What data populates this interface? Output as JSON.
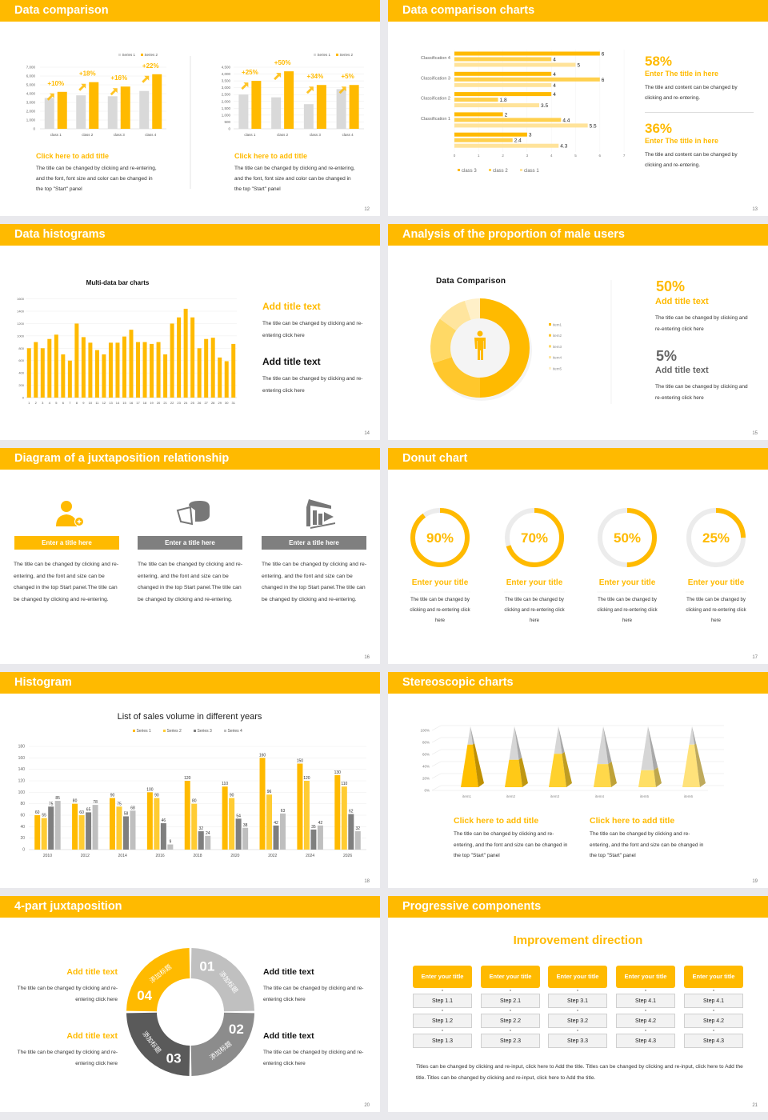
{
  "colors": {
    "accent": "#FFBA00",
    "page_bg": "#e9e9ed",
    "gray_light": "#c0c0c0",
    "gray_mid": "#8c8c8c",
    "gray_dark": "#5a5a5a"
  },
  "slides": [
    {
      "title": "Data comparison",
      "page": "12",
      "blocks": [
        {
          "title": "Click here to add title",
          "body": "The title can be changed by clicking and re-entering, and the font, font size and color can be changed in the top \"Start\" panel"
        },
        {
          "title": "Click here to add title",
          "body": "The title can be changed by clicking and re-entering, and the font, font size and color can be changed in the top \"Start\" panel"
        }
      ]
    },
    {
      "title": "Data comparison charts",
      "page": "13",
      "stats": [
        {
          "value": "58%",
          "title": "Enter The title in here",
          "body": "The title and content can be changed by clicking and re-entering."
        },
        {
          "value": "36%",
          "title": "Enter The title in here",
          "body": "The title and content can be changed by clicking and re-entering."
        }
      ]
    },
    {
      "title": "Data histograms",
      "page": "14",
      "blocks": [
        {
          "title": "Add title text",
          "body": "The title can be changed by clicking and re-entering click here"
        },
        {
          "title": "Add title text",
          "body": "The title can be changed by clicking and re-entering click here"
        }
      ]
    },
    {
      "title": "Analysis of the proportion of male users",
      "page": "15",
      "stats": [
        {
          "value": "50%",
          "title": "Add title text",
          "body": "The title can be changed by clicking and re-entering click here"
        },
        {
          "value": "5%",
          "title": "Add title text",
          "body": "The title can be changed by clicking and re-entering click here"
        }
      ]
    },
    {
      "title": "Diagram of a juxtaposition relationship",
      "page": "16",
      "columns": [
        {
          "icon": "user-add-icon",
          "label": "Enter a title here",
          "body": "The title can be changed by clicking and re-entering, and the font and size can be changed in the top Start panel.The title can be changed by clicking and re-entering."
        },
        {
          "icon": "pie-chart-icon",
          "label": "Enter a title here",
          "body": "The title can be changed by clicking and re-entering, and the font and size can be changed in the top Start panel.The title can be changed by clicking and re-entering."
        },
        {
          "icon": "building-icon",
          "label": "Enter a title here",
          "body": "The title can be changed by clicking and re-entering, and the font and size can be changed in the top Start panel.The title can be changed by clicking and re-entering."
        }
      ]
    },
    {
      "title": "Donut chart",
      "page": "17",
      "items": [
        {
          "title": "Enter your title",
          "body": "The title can be changed by clicking and re-entering click here"
        },
        {
          "title": "Enter your title",
          "body": "The title can be changed by clicking and re-entering click here"
        },
        {
          "title": "Enter your title",
          "body": "The title can be changed by clicking and re-entering click here"
        },
        {
          "title": "Enter your title",
          "body": "The title can be changed by clicking and re-entering click here"
        }
      ]
    },
    {
      "title": "Histogram",
      "page": "18"
    },
    {
      "title": "Stereoscopic charts",
      "page": "19",
      "blocks": [
        {
          "title": "Click here to add title",
          "body": "The title can be changed by clicking and re-entering, and the font and size can be changed in the top \"Start\" panel"
        },
        {
          "title": "Click here to add title",
          "body": "The title can be changed by clicking and re-entering, and the font and size can be changed in the top \"Start\" panel"
        }
      ]
    },
    {
      "title": "4-part juxtaposition",
      "page": "20",
      "segments": [
        {
          "num": "01",
          "label": "添加标题",
          "color": "#c0c0c0"
        },
        {
          "num": "02",
          "label": "添加标题",
          "color": "#8c8c8c"
        },
        {
          "num": "03",
          "label": "添加标题",
          "color": "#5a5a5a"
        },
        {
          "num": "04",
          "label": "添加标题",
          "color": "#FFBA00"
        }
      ],
      "blocks": [
        {
          "title": "Add title text",
          "body": "The title can be changed by clicking and re-entering click here"
        },
        {
          "title": "Add title text",
          "body": "The title can be changed by clicking and re-entering click here"
        },
        {
          "title": "Add title text",
          "body": "The title can be changed by clicking and re-entering click here"
        },
        {
          "title": "Add title text",
          "body": "The title can be changed by clicking and re-entering click here"
        }
      ]
    },
    {
      "title": "Progressive components",
      "page": "21",
      "heading": "Improvement direction",
      "columns": [
        {
          "title": "Enter your title",
          "steps": [
            "Step 1.1",
            "Step 1.2",
            "Step 1.3"
          ]
        },
        {
          "title": "Enter your title",
          "steps": [
            "Step 2.1",
            "Step 2.2",
            "Step 2.3"
          ]
        },
        {
          "title": "Enter your title",
          "steps": [
            "Step 3.1",
            "Step 3.2",
            "Step 3.3"
          ]
        },
        {
          "title": "Enter your title",
          "steps": [
            "Step 4.1",
            "Step 4.2",
            "Step 4.3"
          ]
        },
        {
          "title": "Enter your title",
          "steps": [
            "Step 4.1",
            "Step 4.2",
            "Step 4.3"
          ]
        }
      ],
      "footnote": "Titles can be changed by clicking and re-input, click here to Add the title. Titles can be changed by clicking and re-input, click here to Add the title. Titles can be changed by clicking and re-input, click here to Add the title."
    }
  ],
  "chart_data": [
    {
      "type": "bar",
      "categories": [
        "class 1",
        "class 2",
        "class 3",
        "class 4"
      ],
      "series": [
        {
          "name": "Series 1",
          "values": [
            3500,
            3800,
            3700,
            4300
          ],
          "color": "#d9d9d9"
        },
        {
          "name": "Series 2",
          "values": [
            4200,
            5300,
            4800,
            6200
          ],
          "color": "#FFBA00"
        }
      ],
      "annotations": [
        "+10%",
        "+18%",
        "+16%",
        "+22%"
      ],
      "ylim": [
        0,
        7000
      ],
      "yticks": [
        "0",
        "1,000",
        "2,000",
        "3,000",
        "4,000",
        "5,000",
        "6,000",
        "7,000"
      ],
      "grid": true,
      "legend": "top-right"
    },
    {
      "type": "bar",
      "categories": [
        "class 1",
        "class 2",
        "class 3",
        "class 4"
      ],
      "series": [
        {
          "name": "Series 1",
          "values": [
            2500,
            2300,
            1800,
            2900
          ],
          "color": "#d9d9d9"
        },
        {
          "name": "Series 2",
          "values": [
            3500,
            4200,
            3200,
            3200
          ],
          "color": "#FFBA00"
        }
      ],
      "annotations": [
        "+25%",
        "+50%",
        "+34%",
        "+5%"
      ],
      "ylim": [
        0,
        4500
      ],
      "yticks": [
        "0",
        "500",
        "1,000",
        "1,500",
        "2,000",
        "2,500",
        "3,000",
        "3,500",
        "4,000",
        "4,500"
      ],
      "grid": true,
      "legend": "top-right"
    },
    {
      "type": "bar",
      "orientation": "horizontal",
      "categories": [
        "Classification 4",
        "Classification 3",
        "Classification 2",
        "Classification 1",
        ""
      ],
      "series": [
        {
          "name": "class 3",
          "values": [
            6,
            4,
            4,
            2,
            3
          ],
          "color": "#FFBA00"
        },
        {
          "name": "class 2",
          "values": [
            4,
            6,
            1.8,
            4.4,
            2.4
          ],
          "color": "#FFD04D"
        },
        {
          "name": "class 1",
          "values": [
            5,
            4,
            3.5,
            5.5,
            4.3
          ],
          "color": "#FFE39A"
        }
      ],
      "xlim": [
        0,
        7
      ],
      "xticks": [
        "0",
        "1",
        "2",
        "3",
        "4",
        "5",
        "6",
        "7"
      ],
      "legend": "bottom"
    },
    {
      "type": "bar",
      "title": "Multi-data bar charts",
      "categories": [
        "1",
        "2",
        "3",
        "4",
        "5",
        "6",
        "7",
        "8",
        "9",
        "10",
        "11",
        "12",
        "13",
        "14",
        "15",
        "16",
        "17",
        "18",
        "19",
        "20",
        "21",
        "22",
        "23",
        "24",
        "25",
        "26",
        "27",
        "28",
        "29",
        "30",
        "31"
      ],
      "series": [
        {
          "values": [
            800,
            900,
            800,
            950,
            1020,
            700,
            600,
            1200,
            980,
            890,
            770,
            700,
            890,
            890,
            990,
            1100,
            900,
            900,
            870,
            900,
            700,
            1200,
            1300,
            1440,
            1300,
            800,
            950,
            970,
            650,
            590,
            870
          ],
          "color": "#FFBA00"
        }
      ],
      "ylim": [
        0,
        1600
      ],
      "yticks": [
        "0",
        "200",
        "400",
        "600",
        "800",
        "1000",
        "1200",
        "1400",
        "1600"
      ],
      "grid": true
    },
    {
      "type": "pie",
      "donut": true,
      "title": "Data Comparison",
      "categories": [
        "item1",
        "item2",
        "item3",
        "item4",
        "item5"
      ],
      "values": [
        50,
        20,
        15,
        10,
        5
      ],
      "colors": [
        "#FFBA00",
        "#FFC72C",
        "#FFD966",
        "#FFE59E",
        "#FFF0C8"
      ],
      "legend": "right"
    },
    {
      "type": "pie",
      "donut": true,
      "values": [
        90,
        70,
        50,
        25
      ],
      "labels": [
        "90%",
        "70%",
        "50%",
        "25%"
      ],
      "track_color": "#ececec",
      "color": "#FFBA00"
    },
    {
      "type": "bar",
      "title": "List of sales volume in different years",
      "categories": [
        "2010",
        "2012",
        "2014",
        "2016",
        "2018",
        "2020",
        "2022",
        "2024",
        "2026"
      ],
      "series": [
        {
          "name": "Series 1",
          "values": [
            60,
            80,
            90,
            100,
            120,
            110,
            160,
            150,
            130
          ],
          "color": "#FFBA00"
        },
        {
          "name": "Series 2",
          "values": [
            55,
            60,
            75,
            90,
            80,
            90,
            96,
            120,
            110
          ],
          "color": "#FFCC33"
        },
        {
          "name": "Series 3",
          "values": [
            75,
            65,
            58,
            46,
            32,
            54,
            42,
            35,
            62
          ],
          "color": "#7f7f7f"
        },
        {
          "name": "Series 4",
          "values": [
            85,
            78,
            68,
            9,
            24,
            38,
            63,
            42,
            32
          ],
          "color": "#bfbfbf"
        }
      ],
      "ylim": [
        0,
        180
      ],
      "yticks": [
        "0",
        "20",
        "40",
        "60",
        "80",
        "100",
        "120",
        "140",
        "160",
        "180"
      ],
      "grid": true,
      "legend": "top",
      "data_labels": true
    },
    {
      "type": "bar",
      "style": "3d-pyramid",
      "categories": [
        "item1",
        "item2",
        "item3",
        "item4",
        "item5",
        "item6"
      ],
      "values": [
        70,
        45,
        55,
        38,
        28,
        70
      ],
      "ylim": [
        0,
        100
      ],
      "yticks": [
        "0%",
        "20%",
        "40%",
        "60%",
        "80%",
        "100%"
      ],
      "grid": true,
      "colors": [
        "#FFC000",
        "#FFC917",
        "#FFD12E",
        "#FFD84A",
        "#FFDF66",
        "#FFE27A"
      ]
    }
  ]
}
